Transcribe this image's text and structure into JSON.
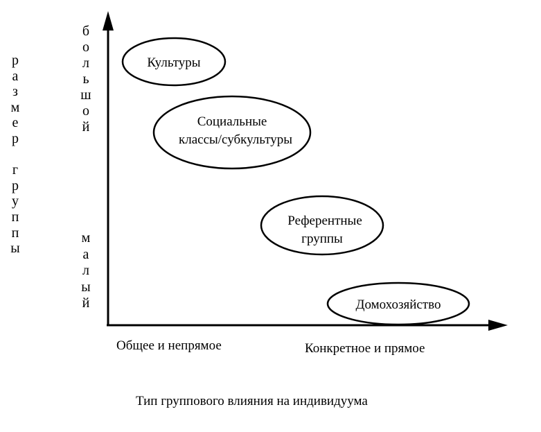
{
  "y_axis": {
    "title": "размер группы",
    "high_label": "большой",
    "low_label": "малый"
  },
  "x_axis": {
    "left_label": "Общее и непрямое",
    "right_label": "Конкретное и прямое",
    "title": "Тип группового влияния на индивидуума"
  },
  "nodes": [
    {
      "id": "cultures",
      "lines": [
        "Культуры"
      ]
    },
    {
      "id": "social-classes",
      "lines": [
        "Социальные",
        "классы/субкультуры"
      ]
    },
    {
      "id": "reference-groups",
      "lines": [
        "Референтные",
        "группы"
      ]
    },
    {
      "id": "household",
      "lines": [
        "Домохозяйство"
      ]
    }
  ],
  "colors": {
    "stroke": "#000000",
    "background": "#ffffff"
  }
}
